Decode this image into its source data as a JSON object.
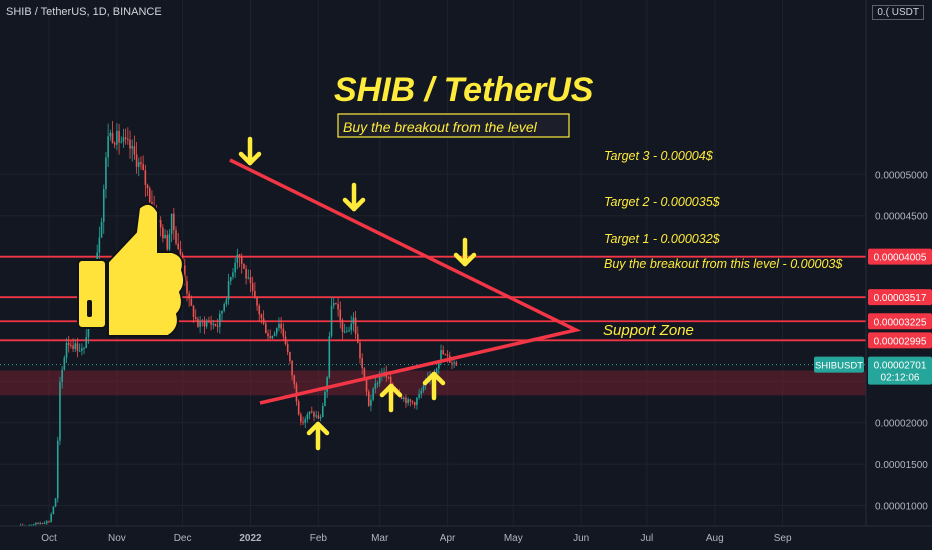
{
  "header": {
    "symbol_line": "SHIB / TetherUS, 1D, BINANCE",
    "currency_badge": "0.( USDT"
  },
  "annotations": {
    "title": "SHIB / TetherUS",
    "subtitle": "Buy the breakout from the level",
    "target3": "Target 3 - 0.00004$",
    "target2": "Target 2 - 0.000035$",
    "target1": "Target 1 - 0.000032$",
    "breakout": "Buy the breakout from this level - 0.00003$",
    "support": "Support Zone"
  },
  "price_labels": {
    "level_4005": "0.00004005",
    "level_3517": "0.00003517",
    "level_3225": "0.00003225",
    "level_2995": "0.00002995",
    "ticker": "SHIBUSDT",
    "last_price": "0.00002701",
    "countdown": "02:12:06"
  },
  "colors": {
    "background": "#131722",
    "up_candle": "#26a69a",
    "down_candle": "#ef5350",
    "level_line": "#f23645",
    "annotation_yellow": "#ffeb3b",
    "support_zone": "rgba(136,33,48,0.45)",
    "thumb": "#ffe23a"
  },
  "chart_data": {
    "type": "candlestick",
    "title": "SHIB / TetherUS",
    "y_axis_ticks": [
      "0.00005000",
      "0.00004500",
      "0.00004005",
      "0.00003517",
      "0.00003225",
      "0.00002995",
      "0.00002701",
      "0.00002000",
      "0.00001500",
      "0.00001000"
    ],
    "x_axis_ticks": [
      "Oct",
      "Nov",
      "Dec",
      "2022",
      "Feb",
      "Mar",
      "Apr",
      "May",
      "Jun",
      "Jul",
      "Aug",
      "Sep"
    ],
    "levels": [
      {
        "name": "Target 3",
        "value": 4.005e-05
      },
      {
        "name": "Target 2",
        "value": 3.517e-05
      },
      {
        "name": "Target 1",
        "value": 3.225e-05
      },
      {
        "name": "Breakout level",
        "value": 2.995e-05
      }
    ],
    "support_zone": [
      2.33e-05,
      2.63e-05
    ],
    "last_price": 2.701e-05,
    "ylim": [
      5.5e-06,
      5.45e-05
    ],
    "price_path": [
      {
        "x": "2021-09-18",
        "y": 7.5e-06
      },
      {
        "x": "2021-10-01",
        "y": 8.1e-06
      },
      {
        "x": "2021-10-04",
        "y": 1.08e-05
      },
      {
        "x": "2021-10-06",
        "y": 2.46e-05
      },
      {
        "x": "2021-10-09",
        "y": 2.98e-05
      },
      {
        "x": "2021-10-17",
        "y": 2.87e-05
      },
      {
        "x": "2021-10-25",
        "y": 4.5e-05
      },
      {
        "x": "2021-10-28",
        "y": 5.5e-05
      },
      {
        "x": "2021-11-03",
        "y": 5.4e-05
      },
      {
        "x": "2021-11-07",
        "y": 5.32e-05
      },
      {
        "x": "2021-11-12",
        "y": 5.08e-05
      },
      {
        "x": "2021-11-18",
        "y": 4.55e-05
      },
      {
        "x": "2021-11-24",
        "y": 4.15e-05
      },
      {
        "x": "2021-11-26",
        "y": 4.45e-05
      },
      {
        "x": "2021-12-01",
        "y": 3.9e-05
      },
      {
        "x": "2021-12-04",
        "y": 3.45e-05
      },
      {
        "x": "2021-12-08",
        "y": 3.18e-05
      },
      {
        "x": "2021-12-12",
        "y": 3.22e-05
      },
      {
        "x": "2021-12-17",
        "y": 3.18e-05
      },
      {
        "x": "2021-12-21",
        "y": 3.55e-05
      },
      {
        "x": "2021-12-26",
        "y": 4.08e-05
      },
      {
        "x": "2021-12-29",
        "y": 3.85e-05
      },
      {
        "x": "2022-01-03",
        "y": 3.48e-05
      },
      {
        "x": "2022-01-07",
        "y": 3.18e-05
      },
      {
        "x": "2022-01-10",
        "y": 3.02e-05
      },
      {
        "x": "2022-01-14",
        "y": 3.22e-05
      },
      {
        "x": "2022-01-17",
        "y": 2.98e-05
      },
      {
        "x": "2022-01-21",
        "y": 2.45e-05
      },
      {
        "x": "2022-01-24",
        "y": 1.98e-05
      },
      {
        "x": "2022-01-28",
        "y": 2.12e-05
      },
      {
        "x": "2022-02-02",
        "y": 2.05e-05
      },
      {
        "x": "2022-02-05",
        "y": 2.55e-05
      },
      {
        "x": "2022-02-07",
        "y": 3.45e-05
      },
      {
        "x": "2022-02-09",
        "y": 3.4e-05
      },
      {
        "x": "2022-02-13",
        "y": 3.05e-05
      },
      {
        "x": "2022-02-17",
        "y": 3.25e-05
      },
      {
        "x": "2022-02-20",
        "y": 2.8e-05
      },
      {
        "x": "2022-02-24",
        "y": 2.22e-05
      },
      {
        "x": "2022-02-27",
        "y": 2.45e-05
      },
      {
        "x": "2022-03-02",
        "y": 2.62e-05
      },
      {
        "x": "2022-03-06",
        "y": 2.48e-05
      },
      {
        "x": "2022-03-10",
        "y": 2.35e-05
      },
      {
        "x": "2022-03-14",
        "y": 2.25e-05
      },
      {
        "x": "2022-03-17",
        "y": 2.25e-05
      },
      {
        "x": "2022-03-21",
        "y": 2.42e-05
      },
      {
        "x": "2022-03-26",
        "y": 2.62e-05
      },
      {
        "x": "2022-03-29",
        "y": 2.85e-05
      },
      {
        "x": "2022-04-02",
        "y": 2.76e-05
      },
      {
        "x": "2022-04-05",
        "y": 2.71e-05
      }
    ]
  }
}
